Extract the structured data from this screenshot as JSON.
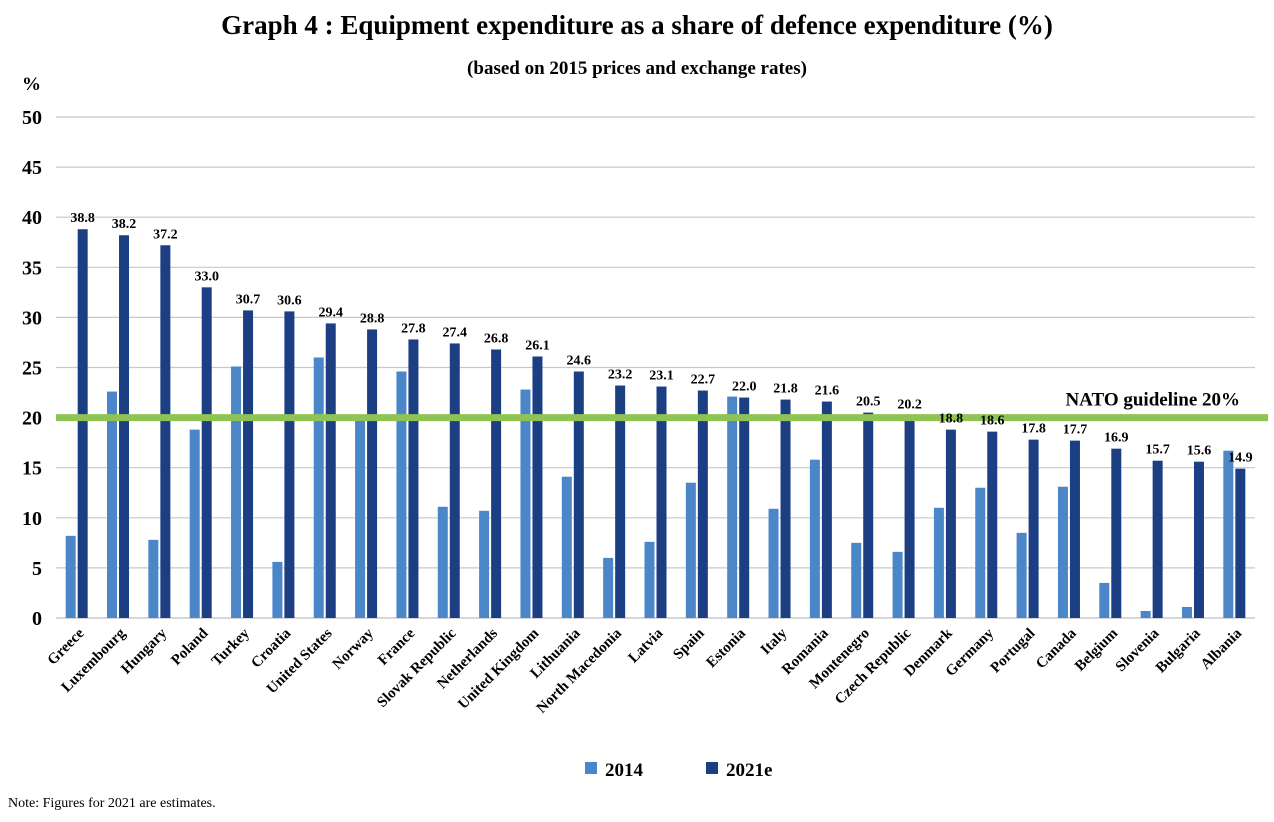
{
  "chart_data": {
    "type": "bar",
    "title": "Graph 4 : Equipment expenditure as a share of defence expenditure (%)",
    "subtitle": "(based on 2015 prices and exchange rates)",
    "ylabel": "%",
    "ylim": [
      0,
      50
    ],
    "yticks": [
      "0",
      "5",
      "10",
      "15",
      "20",
      "25",
      "30",
      "35",
      "40",
      "45",
      "50"
    ],
    "grid": true,
    "legend_position": "bottom-center",
    "categories": [
      "Greece",
      "Luxembourg",
      "Hungary",
      "Poland",
      "Turkey",
      "Croatia",
      "United States",
      "Norway",
      "France",
      "Slovak Republic",
      "Netherlands",
      "United Kingdom",
      "Lithuania",
      "North Macedonia",
      "Latvia",
      "Spain",
      "Estonia",
      "Italy",
      "Romania",
      "Montenegro",
      "Czech Republic",
      "Denmark",
      "Germany",
      "Portugal",
      "Canada",
      "Belgium",
      "Slovenia",
      "Bulgaria",
      "Albania"
    ],
    "series": [
      {
        "name": "2014",
        "color": "#4a86c8",
        "values": [
          8.2,
          22.6,
          7.8,
          18.8,
          25.1,
          5.6,
          26.0,
          20.0,
          24.6,
          11.1,
          10.7,
          22.8,
          14.1,
          6.0,
          7.6,
          13.5,
          22.1,
          10.9,
          15.8,
          7.5,
          6.6,
          11.0,
          13.0,
          8.5,
          13.1,
          3.5,
          0.7,
          1.1,
          16.7
        ]
      },
      {
        "name": "2021e",
        "color": "#1b3f82",
        "values": [
          38.8,
          38.2,
          37.2,
          33.0,
          30.7,
          30.6,
          29.4,
          28.8,
          27.8,
          27.4,
          26.8,
          26.1,
          24.6,
          23.2,
          23.1,
          22.7,
          22.0,
          21.8,
          21.6,
          20.5,
          20.2,
          18.8,
          18.6,
          17.8,
          17.7,
          16.9,
          15.7,
          15.6,
          14.9
        ],
        "labels": [
          "38.8",
          "38.2",
          "37.2",
          "33.0",
          "30.7",
          "30.6",
          "29.4",
          "28.8",
          "27.8",
          "27.4",
          "26.8",
          "26.1",
          "24.6",
          "23.2",
          "23.1",
          "22.7",
          "22.0",
          "21.8",
          "21.6",
          "20.5",
          "20.2",
          "18.8",
          "18.6",
          "17.8",
          "17.7",
          "16.9",
          "15.7",
          "15.6",
          "14.9"
        ]
      }
    ],
    "reference_line": {
      "value": 20,
      "label": "NATO guideline 20%",
      "color": "#8fc454"
    },
    "gridline_color": "#c8c8c8"
  },
  "note": "Note: Figures for 2021 are estimates."
}
